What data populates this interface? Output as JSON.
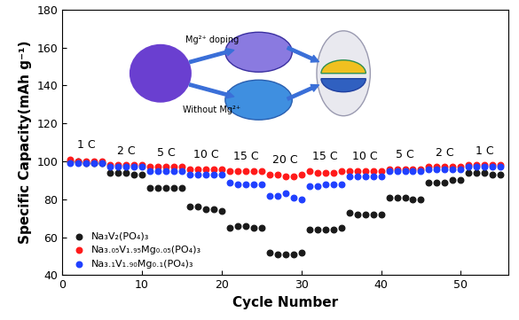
{
  "chart_data": {
    "type": "scatter",
    "y_label": "Specific Capacity(mAh g⁻¹)",
    "x_label": "Cycle Number",
    "x": [
      1,
      2,
      3,
      4,
      5,
      6,
      7,
      8,
      9,
      10,
      11,
      12,
      13,
      14,
      15,
      16,
      17,
      18,
      19,
      20,
      21,
      22,
      23,
      24,
      25,
      26,
      27,
      28,
      29,
      30,
      31,
      32,
      33,
      34,
      35,
      36,
      37,
      38,
      39,
      40,
      41,
      42,
      43,
      44,
      45,
      46,
      47,
      48,
      49,
      50,
      51,
      52,
      53,
      54,
      55
    ],
    "series": [
      {
        "name": "Na₃V₂(PO₄)₃",
        "color": "#1a1a1a",
        "marker": "o",
        "values": [
          100,
          100,
          99,
          99,
          99,
          94,
          94,
          94,
          93,
          93,
          86,
          86,
          86,
          86,
          86,
          76,
          76,
          75,
          75,
          74,
          65,
          66,
          66,
          65,
          65,
          52,
          51,
          51,
          51,
          52,
          64,
          64,
          64,
          64,
          65,
          73,
          72,
          72,
          72,
          72,
          81,
          81,
          81,
          80,
          80,
          89,
          89,
          89,
          90,
          90,
          94,
          94,
          94,
          93,
          93
        ]
      },
      {
        "name": "Na₃.₀₅V₁.₉₅Mg₀.₀₅(PO₄)₃",
        "color": "#ff1a1a",
        "marker": "o",
        "values": [
          101,
          100,
          100,
          100,
          100,
          98,
          98,
          98,
          98,
          98,
          97,
          97,
          97,
          97,
          97,
          96,
          96,
          96,
          96,
          96,
          95,
          95,
          95,
          95,
          95,
          93,
          93,
          92,
          92,
          93,
          95,
          94,
          94,
          94,
          95,
          95,
          95,
          95,
          95,
          95,
          96,
          96,
          96,
          96,
          96,
          97,
          97,
          97,
          97,
          97,
          98,
          98,
          98,
          98,
          98
        ]
      },
      {
        "name": "Na₃.₁V₁.₉₀Mg₀.₁(PO₄)₃",
        "color": "#2040ff",
        "marker": "o",
        "values": [
          99,
          99,
          99,
          99,
          99,
          97,
          97,
          97,
          97,
          97,
          95,
          95,
          95,
          95,
          95,
          93,
          93,
          93,
          93,
          93,
          89,
          88,
          88,
          88,
          88,
          82,
          82,
          83,
          81,
          80,
          87,
          87,
          88,
          88,
          88,
          92,
          92,
          92,
          92,
          92,
          95,
          95,
          95,
          95,
          95,
          96,
          96,
          96,
          96,
          96,
          97,
          97,
          97,
          97,
          97
        ]
      }
    ],
    "rate_labels": [
      "1 C",
      "2 C",
      "5 C",
      "10 C",
      "15 C",
      "20 C",
      "15 C",
      "10 C",
      "5 C",
      "2 C",
      "1 C"
    ],
    "annotations": [
      "Mg²⁺ doping",
      "Without Mg²⁺"
    ],
    "xlim": [
      0,
      56
    ],
    "xticks": [
      0,
      10,
      20,
      30,
      40,
      50
    ],
    "ylim": [
      40,
      180
    ],
    "yticks": [
      40,
      60,
      80,
      100,
      120,
      140,
      160,
      180
    ],
    "legend": "lower left",
    "grid": false
  }
}
